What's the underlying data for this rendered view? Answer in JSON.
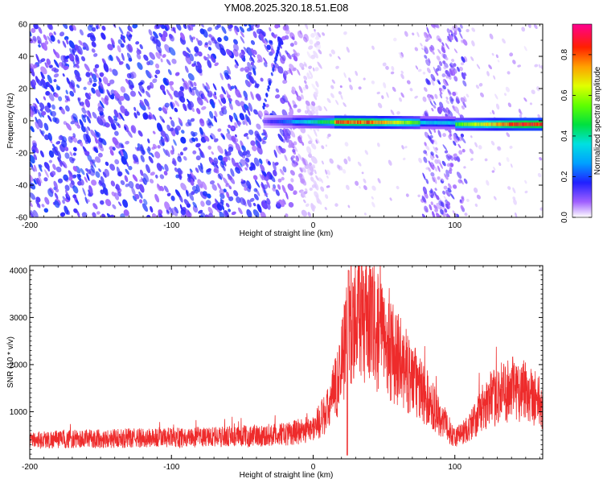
{
  "title": "YM08.2025.320.18.51.E08",
  "chart_data": [
    {
      "type": "heatmap",
      "xlabel": "Height of straight line (km)",
      "ylabel": "Frequency (Hz)",
      "xlim": [
        -200,
        162
      ],
      "ylim": [
        -60,
        60
      ],
      "x_ticks": [
        -200,
        -100,
        0,
        100
      ],
      "y_ticks": [
        -60,
        -40,
        -20,
        0,
        20,
        40,
        60
      ],
      "colorbar": {
        "label": "Normalized spectral amplitude",
        "range": [
          0,
          0.95
        ],
        "ticks": [
          0.0,
          0.2,
          0.4,
          0.6,
          0.8
        ]
      },
      "features": [
        {
          "name": "broadband noise",
          "x_range": [
            -200,
            -10
          ],
          "amplitude": 0.15
        },
        {
          "name": "scattered noise",
          "x_range": [
            -10,
            162
          ],
          "amplitude": 0.05
        },
        {
          "name": "vertical noise band",
          "x_range": [
            78,
            108
          ],
          "amplitude": 0.1
        },
        {
          "name": "main tone near 0 Hz",
          "x_range": [
            -35,
            162
          ],
          "frequency_hz": [
            -3,
            0
          ],
          "peak_amplitude": 0.92
        }
      ]
    },
    {
      "type": "line",
      "xlabel": "Height of straight line (km)",
      "ylabel": "SNR (10 * v/v)",
      "xlim": [
        -200,
        162
      ],
      "ylim": [
        0,
        4100
      ],
      "x_ticks": [
        -200,
        -100,
        0,
        100
      ],
      "y_ticks": [
        1000,
        2000,
        3000,
        4000
      ],
      "color": "#ee2b2b",
      "envelope": {
        "x": [
          -200,
          -150,
          -100,
          -60,
          -40,
          -20,
          0,
          10,
          18,
          25,
          32,
          40,
          55,
          70,
          85,
          95,
          100,
          110,
          120,
          135,
          150,
          162
        ],
        "y": [
          400,
          430,
          450,
          470,
          490,
          520,
          650,
          1000,
          1700,
          2900,
          3100,
          2900,
          2300,
          1700,
          1100,
          650,
          450,
          650,
          1100,
          1450,
          1500,
          1150
        ]
      },
      "peak": {
        "x": 25,
        "y": 4000
      }
    }
  ]
}
